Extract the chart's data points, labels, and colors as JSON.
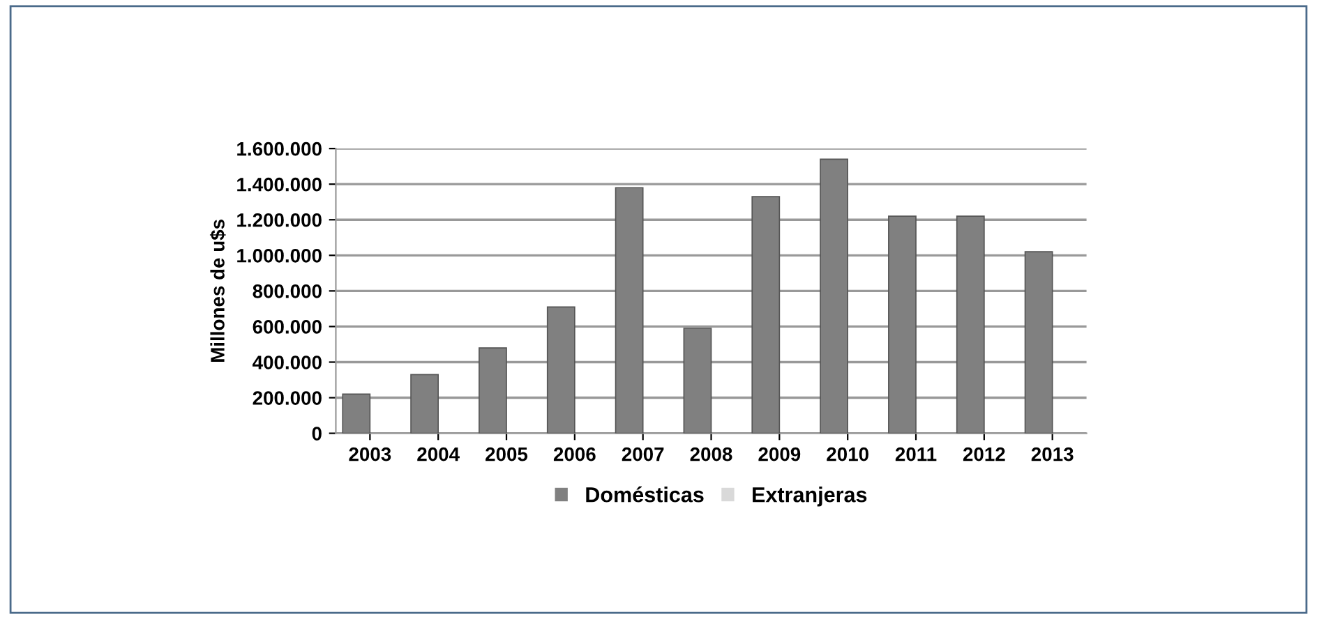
{
  "chart_data": {
    "type": "bar",
    "ylabel": "Millones de u$s",
    "categories": [
      "2003",
      "2004",
      "2005",
      "2006",
      "2007",
      "2008",
      "2009",
      "2010",
      "2011",
      "2012",
      "2013"
    ],
    "series": [
      {
        "name": "Domésticas",
        "color": "#808080",
        "values": [
          220000,
          330000,
          480000,
          710000,
          1380000,
          590000,
          1330000,
          1540000,
          1220000,
          1220000,
          1020000
        ]
      },
      {
        "name": "Extranjeras",
        "color": "#d9d9d9",
        "values": [
          null,
          null,
          null,
          null,
          null,
          null,
          null,
          null,
          null,
          null,
          null
        ]
      }
    ],
    "ylim": [
      0,
      1600000
    ],
    "yticks": [
      0,
      {
        "value": 200000,
        "label": "200.000"
      },
      {
        "value": 400000,
        "label": "400.000"
      },
      {
        "value": 600000,
        "label": "600.000"
      },
      {
        "value": 800000,
        "label": "800.000"
      },
      {
        "value": 1000000,
        "label": "1.000.000"
      },
      {
        "value": 1200000,
        "label": "1.200.000"
      },
      {
        "value": 1400000,
        "label": "1.400.000"
      },
      {
        "value": 1600000,
        "label": "1.600.000"
      }
    ],
    "grid": "y",
    "legend": "bottom"
  }
}
